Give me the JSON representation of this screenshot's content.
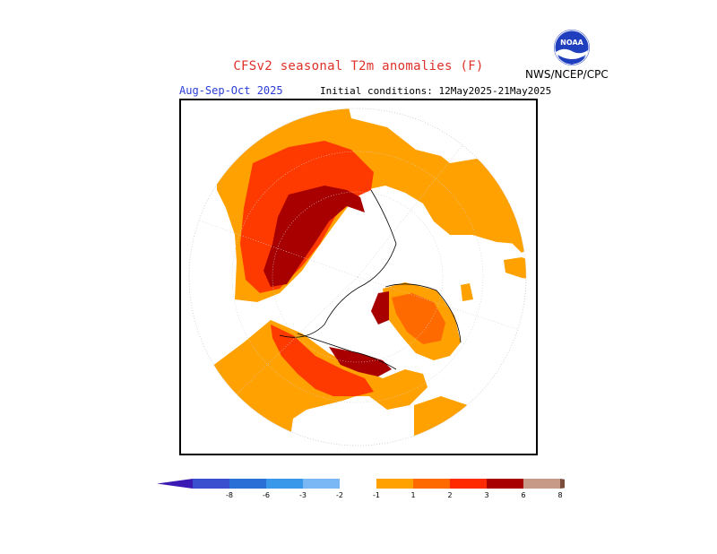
{
  "header": {
    "title": "CFSv2 seasonal T2m anomalies (F)",
    "period": "Aug-Sep-Oct 2025",
    "initial_conditions": "Initial conditions: 12May2025-21May2025",
    "agency": "NWS/NCEP/CPC",
    "logo_text": "NOAA"
  },
  "map": {
    "projection": "north polar stereographic",
    "anomaly_regions": [
      {
        "region": "Eurasia / Siberia",
        "class": "1-2"
      },
      {
        "region": "Western Siberia",
        "class": "2-3"
      },
      {
        "region": "Taymyr / Arctic Siberia coast",
        "class": "3-6"
      },
      {
        "region": "Greenland",
        "class": "2-3"
      },
      {
        "region": "Canadian Arctic Archipelago",
        "class": "3-6"
      },
      {
        "region": "Alaska / Yukon",
        "class": "2-3"
      },
      {
        "region": "Western North America",
        "class": "1-2"
      },
      {
        "region": "Europe / North Africa",
        "class": "1-2"
      }
    ]
  },
  "colorbar": {
    "labels": [
      "-8",
      "-6",
      "-3",
      "-2",
      "-1",
      "1",
      "2",
      "3",
      "6",
      "8"
    ],
    "colors": [
      "#3b1ab3",
      "#3a4fd0",
      "#2a6fd6",
      "#3a98ea",
      "#7ab8f5",
      "#ffffff",
      "#ffa100",
      "#ff6a00",
      "#ff2a00",
      "#a80000",
      "#c69a86",
      "#7a4c3c"
    ]
  }
}
